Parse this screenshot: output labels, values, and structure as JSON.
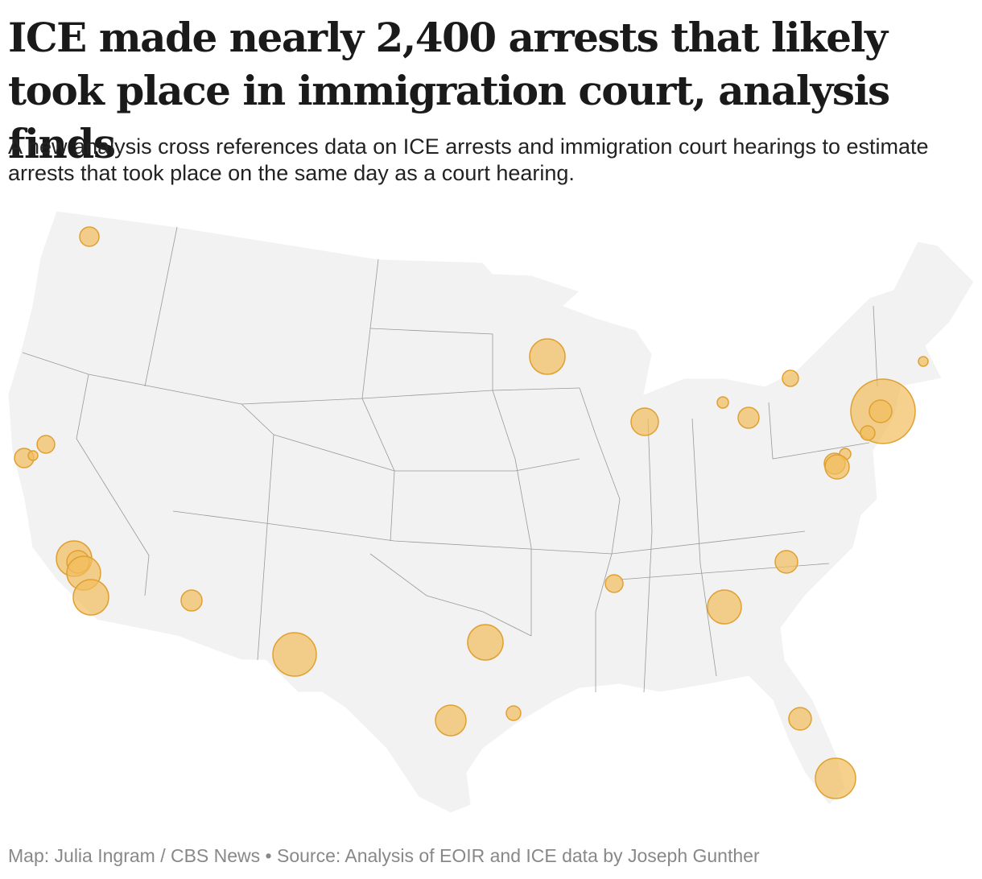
{
  "header": {
    "title": "ICE made nearly 2,400 arrests that likely took place in immigration court, analysis finds",
    "subtitle": "A new analysis cross references data on ICE arrests and immigration court hearings to estimate arrests that took place on the same day as a court hearing."
  },
  "footer": {
    "credit": "Map: Julia Ingram / CBS News • Source: Analysis of EOIR and ICE data by Joseph Gunther"
  }
}
